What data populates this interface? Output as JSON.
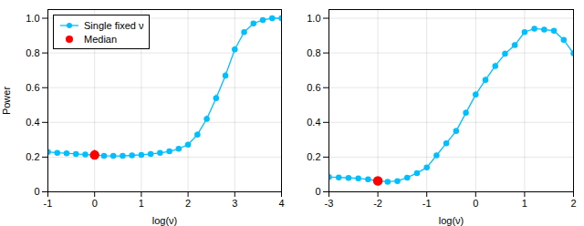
{
  "chart_data": [
    {
      "type": "line",
      "xlabel": "log(ν)",
      "ylabel": "Power",
      "xlim": [
        -1,
        4
      ],
      "xticks": [
        -1,
        0,
        1,
        2,
        3,
        4
      ],
      "ylim": [
        0,
        1.05
      ],
      "yticks": [
        0,
        0.2,
        0.4,
        0.6,
        0.8,
        {
          "value": 1.0,
          "label": "1.0"
        }
      ],
      "grid": true,
      "legend": "upper left",
      "x": [
        -1.0,
        -0.8,
        -0.6,
        -0.4,
        -0.2,
        0.0,
        0.2,
        0.4,
        0.6,
        0.8,
        1.0,
        1.2,
        1.4,
        1.6,
        1.8,
        2.0,
        2.2,
        2.4,
        2.6,
        2.8,
        3.0,
        3.2,
        3.4,
        3.6,
        3.8,
        4.0
      ],
      "series": [
        {
          "name": "Single fixed ν",
          "color": "#00BFFF",
          "marker": "o",
          "line_style": "solid",
          "values": [
            0.23,
            0.225,
            0.222,
            0.218,
            0.215,
            0.212,
            0.208,
            0.207,
            0.207,
            0.21,
            0.213,
            0.218,
            0.224,
            0.233,
            0.248,
            0.272,
            0.33,
            0.42,
            0.54,
            0.67,
            0.82,
            0.92,
            0.97,
            0.99,
            1.0,
            1.0
          ],
          "error": [
            0.012,
            0.011,
            0.011,
            0.011,
            0.011,
            0.011,
            0.011,
            0.011,
            0.011,
            0.011,
            0.011,
            0.011,
            0.011,
            0.012,
            0.012,
            0.013,
            0.015,
            0.018,
            0.02,
            0.02,
            0.017,
            0.012,
            0.007,
            0.004,
            0.002,
            0.001
          ]
        },
        {
          "name": "Median",
          "type": "scatter",
          "color": "#FF0000",
          "marker": "o",
          "x": [
            0.0
          ],
          "values": [
            0.212
          ],
          "error": [
            0.028
          ]
        }
      ]
    },
    {
      "type": "line",
      "xlabel": "log(ν)",
      "xlim": [
        -3,
        2
      ],
      "xticks": [
        -3,
        -2,
        -1,
        0,
        1,
        2
      ],
      "ylim": [
        0,
        1.05
      ],
      "yticks": [
        0,
        0.2,
        0.4,
        0.6,
        0.8,
        {
          "value": 1.0,
          "label": "1.0"
        }
      ],
      "grid": true,
      "x": [
        -3.0,
        -2.8,
        -2.6,
        -2.4,
        -2.2,
        -2.0,
        -1.8,
        -1.6,
        -1.4,
        -1.2,
        -1.0,
        -0.8,
        -0.6,
        -0.4,
        -0.2,
        0.0,
        0.2,
        0.4,
        0.6,
        0.8,
        1.0,
        1.2,
        1.4,
        1.6,
        1.8,
        2.0
      ],
      "series": [
        {
          "color": "#00BFFF",
          "marker": "o",
          "line_style": "solid",
          "values": [
            0.085,
            0.083,
            0.08,
            0.078,
            0.072,
            0.063,
            0.058,
            0.062,
            0.082,
            0.108,
            0.14,
            0.21,
            0.28,
            0.35,
            0.455,
            0.56,
            0.645,
            0.725,
            0.795,
            0.845,
            0.92,
            0.94,
            0.935,
            0.928,
            0.875,
            0.798
          ],
          "error": [
            0.006,
            0.006,
            0.006,
            0.006,
            0.006,
            0.006,
            0.006,
            0.006,
            0.007,
            0.008,
            0.009,
            0.012,
            0.014,
            0.015,
            0.017,
            0.018,
            0.018,
            0.017,
            0.016,
            0.015,
            0.012,
            0.011,
            0.011,
            0.011,
            0.013,
            0.015
          ]
        },
        {
          "type": "scatter",
          "color": "#FF0000",
          "marker": "o",
          "x": [
            -2.0
          ],
          "values": [
            0.063
          ],
          "error": [
            0.006
          ]
        }
      ]
    }
  ]
}
